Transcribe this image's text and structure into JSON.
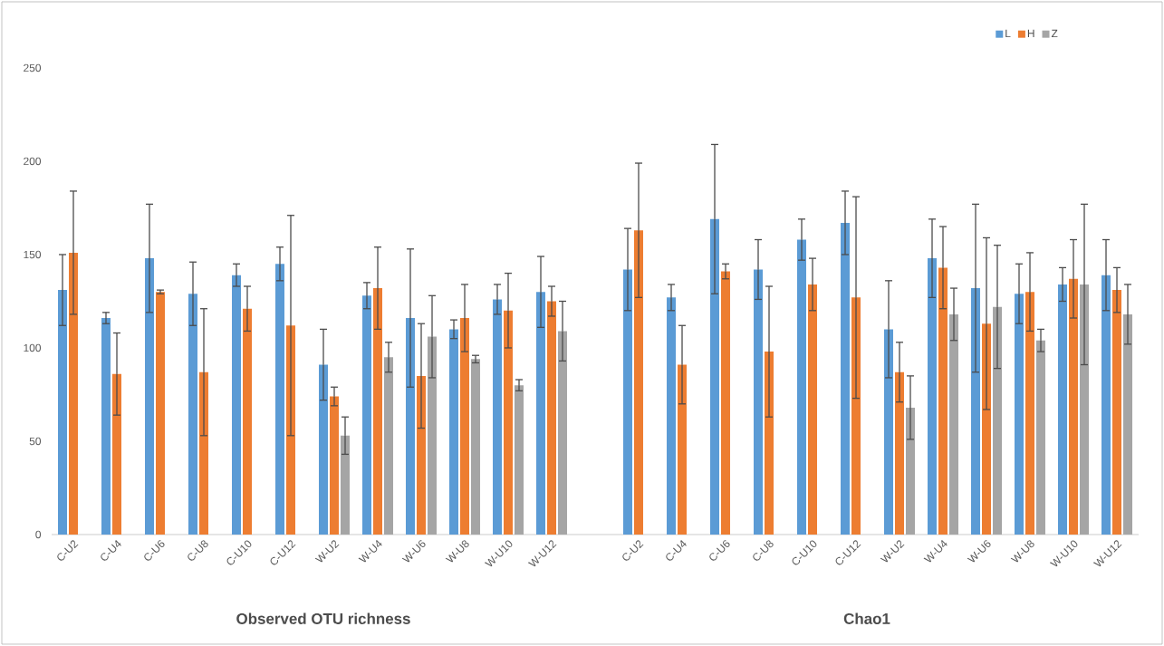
{
  "chart_data": {
    "type": "bar",
    "categories": [
      "C-U2",
      "C-U4",
      "C-U6",
      "C-U8",
      "C-U10",
      "C-U12",
      "W-U2",
      "W-U4",
      "W-U6",
      "W-U8",
      "W-U10",
      "W-U12",
      null,
      "C-U2",
      "C-U4",
      "C-U6",
      "C-U8",
      "C-U10",
      "C-U12",
      "W-U2",
      "W-U4",
      "W-U6",
      "W-U8",
      "W-U10",
      "W-U12"
    ],
    "series": [
      {
        "name": "L",
        "color": "#5b9bd5",
        "values": [
          131,
          116,
          148,
          129,
          139,
          145,
          91,
          128,
          116,
          110,
          126,
          130,
          null,
          142,
          127,
          169,
          142,
          158,
          167,
          110,
          148,
          132,
          129,
          134,
          139
        ],
        "errors": [
          19,
          3,
          29,
          17,
          6,
          9,
          19,
          7,
          37,
          5,
          8,
          19,
          null,
          22,
          7,
          40,
          16,
          11,
          17,
          26,
          21,
          45,
          16,
          9,
          19
        ]
      },
      {
        "name": "H",
        "color": "#ed7d31",
        "values": [
          151,
          86,
          130,
          87,
          121,
          112,
          74,
          132,
          85,
          116,
          120,
          125,
          null,
          163,
          91,
          141,
          98,
          134,
          127,
          87,
          143,
          113,
          130,
          137,
          131
        ],
        "errors": [
          33,
          22,
          1,
          34,
          12,
          59,
          5,
          22,
          28,
          18,
          20,
          8,
          null,
          36,
          21,
          4,
          35,
          14,
          54,
          16,
          22,
          46,
          21,
          21,
          12
        ]
      },
      {
        "name": "Z",
        "color": "#a5a5a5",
        "values": [
          null,
          null,
          null,
          null,
          null,
          null,
          53,
          95,
          106,
          94,
          80,
          109,
          null,
          null,
          null,
          null,
          null,
          null,
          null,
          68,
          118,
          122,
          104,
          134,
          118
        ],
        "errors": [
          null,
          null,
          null,
          null,
          null,
          null,
          10,
          8,
          22,
          2,
          3,
          16,
          null,
          null,
          null,
          null,
          null,
          null,
          null,
          17,
          14,
          33,
          6,
          43,
          16
        ]
      }
    ],
    "ylim": [
      0,
      250
    ],
    "yticks": [
      0,
      50,
      100,
      150,
      200,
      250
    ],
    "grid": false,
    "legend": "top right",
    "annotations": [
      "Observed OTU richness",
      "Chao1"
    ]
  }
}
